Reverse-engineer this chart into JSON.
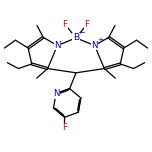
{
  "bg_color": "#ffffff",
  "atom_color_N": "#0000cc",
  "atom_color_B": "#0000cc",
  "atom_color_F": "#dd0000",
  "bond_color": "#000000",
  "bond_lw": 0.9,
  "dbo": 0.055,
  "figsize": [
    1.52,
    1.52
  ],
  "dpi": 100,
  "xlim": [
    0.0,
    8.5
  ],
  "ylim": [
    2.2,
    10.2
  ]
}
